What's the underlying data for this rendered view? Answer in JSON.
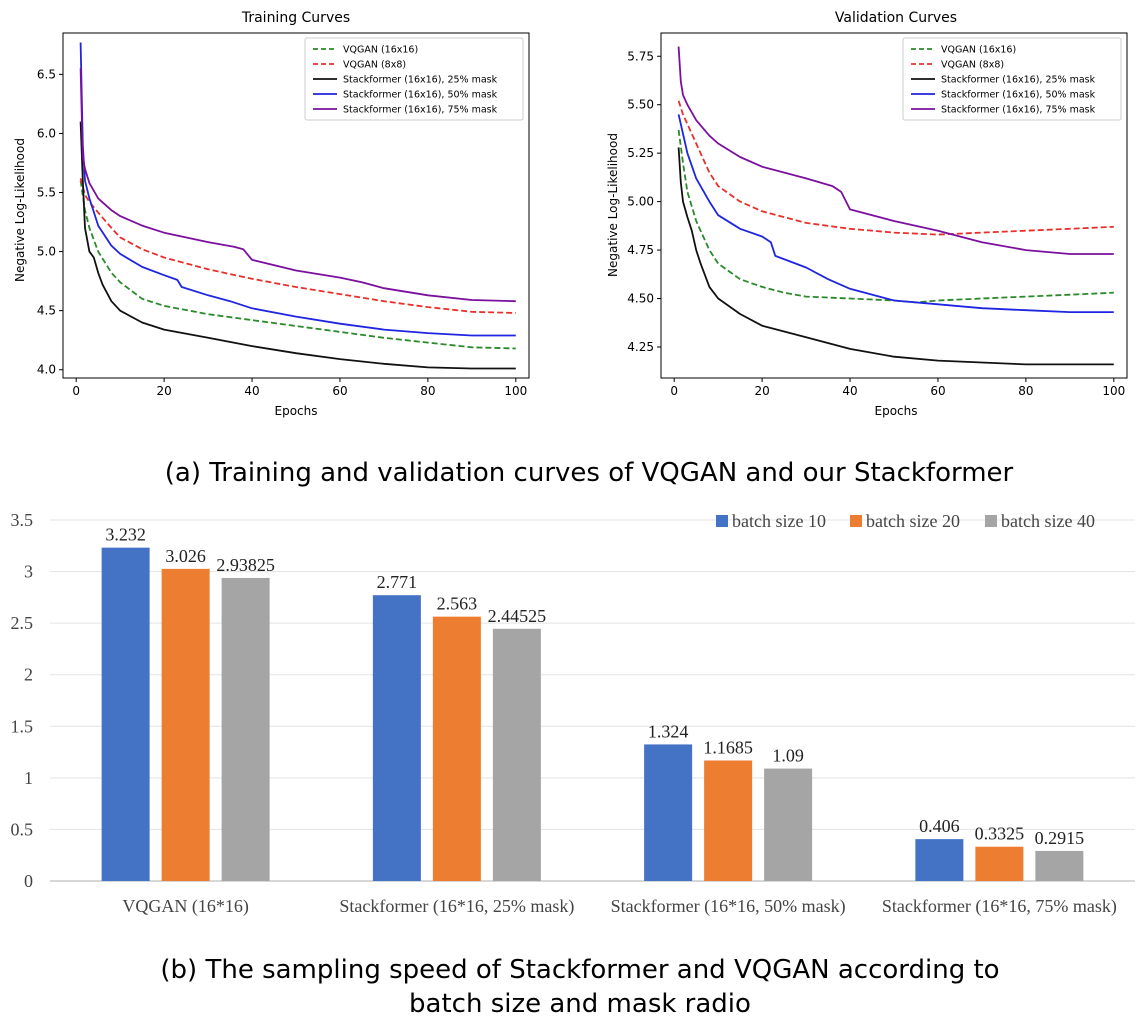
{
  "chart_data": [
    {
      "type": "line",
      "title": "Training Curves",
      "xlabel": "Epochs",
      "ylabel": "Negative Log-Likelihood",
      "xlim": [
        -3,
        103
      ],
      "ylim": [
        3.93,
        6.85
      ],
      "xticks": [
        0,
        20,
        40,
        60,
        80,
        100
      ],
      "xtick_labels": [
        "0",
        "20",
        "40",
        "60",
        "80",
        "100"
      ],
      "yticks": [
        4.0,
        4.5,
        5.0,
        5.5,
        6.0,
        6.5
      ],
      "ytick_labels": [
        "4.0",
        "4.5",
        "5.0",
        "5.5",
        "6.0",
        "6.5"
      ],
      "legend_position": "top-right",
      "series": [
        {
          "name": "VQGAN (16x16)",
          "color": "#2a8a2a",
          "dashed": true,
          "x": [
            1,
            2,
            3,
            5,
            8,
            10,
            15,
            20,
            30,
            40,
            50,
            60,
            70,
            80,
            90,
            100
          ],
          "y": [
            5.6,
            5.35,
            5.2,
            5.0,
            4.82,
            4.74,
            4.6,
            4.54,
            4.47,
            4.42,
            4.37,
            4.32,
            4.27,
            4.23,
            4.19,
            4.18
          ]
        },
        {
          "name": "VQGAN (8x8)",
          "color": "#e8302a",
          "dashed": true,
          "x": [
            1,
            2,
            3,
            5,
            8,
            10,
            15,
            20,
            30,
            40,
            50,
            60,
            70,
            80,
            90,
            100
          ],
          "y": [
            5.62,
            5.48,
            5.42,
            5.33,
            5.2,
            5.12,
            5.02,
            4.95,
            4.85,
            4.77,
            4.7,
            4.64,
            4.58,
            4.53,
            4.49,
            4.48
          ]
        },
        {
          "name": "Stackformer (16x16), 25% mask",
          "color": "#111111",
          "dashed": false,
          "x": [
            1,
            1.5,
            2,
            3,
            4,
            5,
            6,
            8,
            10,
            15,
            20,
            30,
            40,
            50,
            60,
            70,
            80,
            90,
            100
          ],
          "y": [
            6.1,
            5.6,
            5.2,
            5.0,
            4.95,
            4.82,
            4.72,
            4.58,
            4.5,
            4.4,
            4.34,
            4.27,
            4.2,
            4.14,
            4.09,
            4.05,
            4.02,
            4.01,
            4.01
          ]
        },
        {
          "name": "Stackformer (16x16), 50% mask",
          "color": "#1f25e0",
          "dashed": false,
          "x": [
            1,
            1.5,
            2,
            3,
            5,
            8,
            10,
            15,
            20,
            23,
            24,
            30,
            35,
            40,
            50,
            60,
            70,
            80,
            90,
            100
          ],
          "y": [
            6.77,
            5.9,
            5.6,
            5.45,
            5.22,
            5.05,
            4.98,
            4.87,
            4.8,
            4.76,
            4.7,
            4.63,
            4.58,
            4.52,
            4.45,
            4.39,
            4.34,
            4.31,
            4.29,
            4.29
          ]
        },
        {
          "name": "Stackformer (16x16), 75% mask",
          "color": "#7b0f9e",
          "dashed": false,
          "x": [
            1,
            1.5,
            2,
            3,
            5,
            8,
            10,
            15,
            20,
            30,
            36,
            38,
            40,
            50,
            60,
            65,
            70,
            80,
            90,
            100
          ],
          "y": [
            6.55,
            5.8,
            5.7,
            5.58,
            5.45,
            5.35,
            5.3,
            5.22,
            5.16,
            5.08,
            5.04,
            5.02,
            4.93,
            4.84,
            4.78,
            4.74,
            4.69,
            4.63,
            4.59,
            4.58
          ]
        }
      ]
    },
    {
      "type": "line",
      "title": "Validation Curves",
      "xlabel": "Epochs",
      "ylabel": "Negative Log-Likelihood",
      "xlim": [
        -3,
        103
      ],
      "ylim": [
        4.09,
        5.87
      ],
      "xticks": [
        0,
        20,
        40,
        60,
        80,
        100
      ],
      "xtick_labels": [
        "0",
        "20",
        "40",
        "60",
        "80",
        "100"
      ],
      "yticks": [
        4.25,
        4.5,
        4.75,
        5.0,
        5.25,
        5.5,
        5.75
      ],
      "ytick_labels": [
        "4.25",
        "4.50",
        "4.75",
        "5.00",
        "5.25",
        "5.50",
        "5.75"
      ],
      "legend_position": "top-right",
      "series": [
        {
          "name": "VQGAN (16x16)",
          "color": "#2a8a2a",
          "dashed": true,
          "x": [
            1,
            2,
            3,
            5,
            8,
            10,
            15,
            20,
            25,
            30,
            40,
            50,
            55,
            60,
            70,
            80,
            90,
            100
          ],
          "y": [
            5.37,
            5.2,
            5.05,
            4.9,
            4.75,
            4.68,
            4.6,
            4.56,
            4.53,
            4.51,
            4.5,
            4.49,
            4.48,
            4.49,
            4.5,
            4.51,
            4.52,
            4.53
          ]
        },
        {
          "name": "VQGAN (8x8)",
          "color": "#e8302a",
          "dashed": true,
          "x": [
            1,
            2,
            3,
            5,
            8,
            10,
            15,
            20,
            30,
            40,
            50,
            60,
            70,
            80,
            90,
            100
          ],
          "y": [
            5.52,
            5.45,
            5.4,
            5.3,
            5.15,
            5.08,
            5.0,
            4.95,
            4.89,
            4.86,
            4.84,
            4.83,
            4.84,
            4.85,
            4.86,
            4.87
          ]
        },
        {
          "name": "Stackformer (16x16), 25% mask",
          "color": "#111111",
          "dashed": false,
          "x": [
            1,
            1.5,
            2,
            3,
            4,
            5,
            6,
            8,
            10,
            15,
            20,
            30,
            40,
            50,
            60,
            70,
            80,
            90,
            100
          ],
          "y": [
            5.28,
            5.1,
            5.0,
            4.92,
            4.85,
            4.75,
            4.68,
            4.56,
            4.5,
            4.42,
            4.36,
            4.3,
            4.24,
            4.2,
            4.18,
            4.17,
            4.16,
            4.16,
            4.16
          ]
        },
        {
          "name": "Stackformer (16x16), 50% mask",
          "color": "#1f25e0",
          "dashed": false,
          "x": [
            1,
            2,
            3,
            5,
            8,
            10,
            15,
            20,
            22,
            23,
            30,
            35,
            40,
            50,
            60,
            70,
            80,
            90,
            100
          ],
          "y": [
            5.45,
            5.35,
            5.25,
            5.12,
            5.0,
            4.93,
            4.86,
            4.82,
            4.79,
            4.72,
            4.66,
            4.6,
            4.55,
            4.49,
            4.47,
            4.45,
            4.44,
            4.43,
            4.43
          ]
        },
        {
          "name": "Stackformer (16x16), 75% mask",
          "color": "#7b0f9e",
          "dashed": false,
          "x": [
            1,
            1.5,
            2,
            3,
            5,
            8,
            10,
            15,
            20,
            30,
            36,
            38,
            40,
            50,
            60,
            70,
            80,
            90,
            100
          ],
          "y": [
            5.8,
            5.62,
            5.55,
            5.5,
            5.42,
            5.34,
            5.3,
            5.23,
            5.18,
            5.12,
            5.08,
            5.05,
            4.96,
            4.9,
            4.85,
            4.79,
            4.75,
            4.73,
            4.73
          ]
        }
      ]
    },
    {
      "type": "bar",
      "categories": [
        "VQGAN (16*16)",
        "Stackformer (16*16, 25% mask)",
        "Stackformer (16*16, 50% mask)",
        "Stackformer (16*16, 75% mask)"
      ],
      "series": [
        {
          "name": "batch size 10",
          "color": "#4472c4",
          "values": [
            3.232,
            2.771,
            1.324,
            0.406
          ],
          "labels": [
            "3.232",
            "2.771",
            "1.324",
            "0.406"
          ]
        },
        {
          "name": "batch size 20",
          "color": "#ed7d31",
          "values": [
            3.026,
            2.563,
            1.1685,
            0.3325
          ],
          "labels": [
            "3.026",
            "2.563",
            "1.1685",
            "0.3325"
          ]
        },
        {
          "name": "batch size 40",
          "color": "#a5a5a5",
          "values": [
            2.93825,
            2.44525,
            1.09,
            0.2915
          ],
          "labels": [
            "2.93825",
            "2.44525",
            "1.09",
            "0.2915"
          ]
        }
      ],
      "ylim": [
        0,
        3.5
      ],
      "yticks": [
        0,
        0.5,
        1,
        1.5,
        2,
        2.5,
        3,
        3.5
      ],
      "ytick_labels": [
        "0",
        "0.5",
        "1",
        "1.5",
        "2",
        "2.5",
        "3",
        "3.5"
      ],
      "grid": true,
      "legend_position": "top-right",
      "title": "",
      "xlabel": "",
      "ylabel": ""
    }
  ],
  "captions": {
    "a": "(a) Training and validation curves of VQGAN and our Stackformer",
    "b_line1": "(b) The sampling speed of Stackformer and VQGAN according to",
    "b_line2": "batch size and mask radio"
  }
}
